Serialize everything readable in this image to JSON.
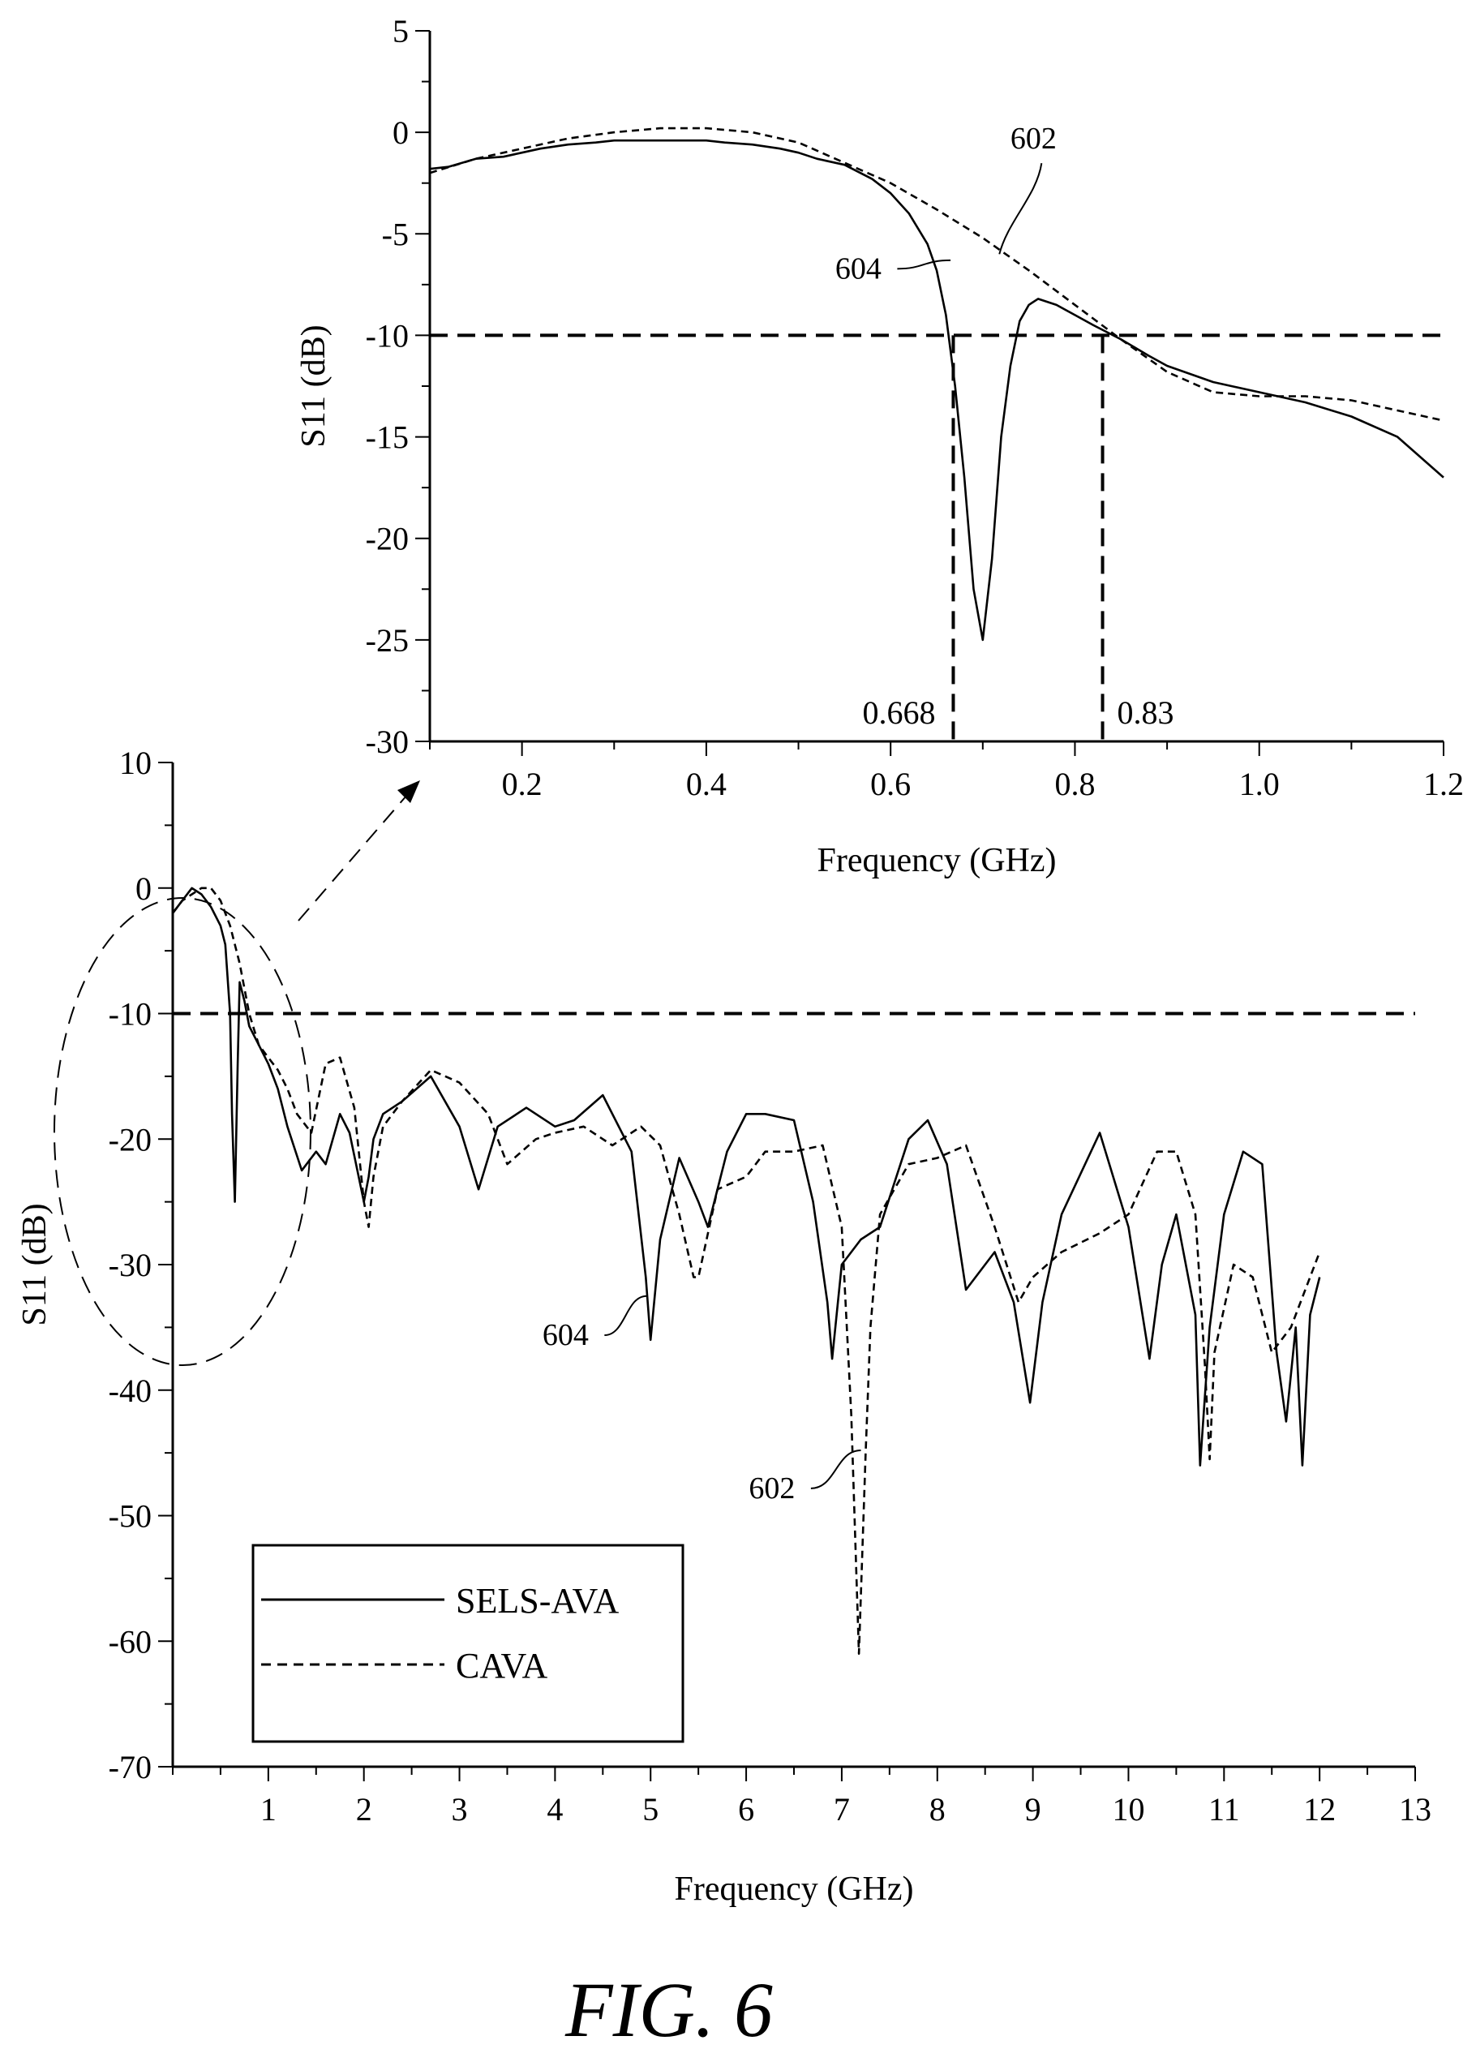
{
  "figure": {
    "caption": "FIG. 6"
  },
  "chart_data": [
    {
      "type": "line",
      "id": "inset",
      "xlabel": "Frequency (GHz)",
      "ylabel": "S11 (dB)",
      "xlim": [
        0.1,
        1.2
      ],
      "ylim": [
        -30,
        5
      ],
      "xticks": [
        0.2,
        0.4,
        0.6,
        0.8,
        1.0,
        1.2
      ],
      "xtick_labels": [
        "0.2",
        "0.4",
        "0.6",
        "0.8",
        "1.0",
        "1.2"
      ],
      "yticks": [
        5,
        0,
        -5,
        -10,
        -15,
        -20,
        -25,
        -30
      ],
      "ytick_labels": [
        "5",
        "0",
        "-5",
        "-10",
        "-15",
        "-20",
        "-25",
        "-30"
      ],
      "reference_line_y": -10,
      "vertical_markers": [
        {
          "x": 0.668,
          "label": "0.668"
        },
        {
          "x": 0.83,
          "label": "0.83"
        }
      ],
      "series": [
        {
          "name": "SELS-AVA",
          "ref": "604",
          "style": "solid",
          "x": [
            0.1,
            0.12,
            0.15,
            0.18,
            0.2,
            0.22,
            0.25,
            0.28,
            0.3,
            0.32,
            0.35,
            0.38,
            0.4,
            0.42,
            0.45,
            0.48,
            0.5,
            0.52,
            0.55,
            0.58,
            0.6,
            0.62,
            0.64,
            0.65,
            0.66,
            0.67,
            0.68,
            0.69,
            0.7,
            0.71,
            0.72,
            0.73,
            0.74,
            0.75,
            0.76,
            0.78,
            0.8,
            0.82,
            0.85,
            0.88,
            0.9,
            0.95,
            1.0,
            1.05,
            1.1,
            1.15,
            1.2
          ],
          "y": [
            -1.8,
            -1.7,
            -1.3,
            -1.2,
            -1.0,
            -0.8,
            -0.6,
            -0.5,
            -0.4,
            -0.4,
            -0.4,
            -0.4,
            -0.4,
            -0.5,
            -0.6,
            -0.8,
            -1.0,
            -1.3,
            -1.6,
            -2.3,
            -3.0,
            -4.0,
            -5.5,
            -6.8,
            -9.0,
            -12.5,
            -17.0,
            -22.5,
            -25.0,
            -21.0,
            -15.0,
            -11.5,
            -9.3,
            -8.5,
            -8.2,
            -8.5,
            -9.0,
            -9.5,
            -10.2,
            -11.0,
            -11.5,
            -12.3,
            -12.8,
            -13.3,
            -14.0,
            -15.0,
            -17.0
          ]
        },
        {
          "name": "CAVA",
          "ref": "602",
          "style": "dashed",
          "x": [
            0.1,
            0.15,
            0.2,
            0.25,
            0.3,
            0.35,
            0.4,
            0.45,
            0.5,
            0.55,
            0.6,
            0.65,
            0.7,
            0.75,
            0.8,
            0.85,
            0.9,
            0.95,
            1.0,
            1.05,
            1.1,
            1.15,
            1.2
          ],
          "y": [
            -2.0,
            -1.3,
            -0.8,
            -0.3,
            0.0,
            0.2,
            0.2,
            0.0,
            -0.5,
            -1.5,
            -2.5,
            -3.8,
            -5.2,
            -6.8,
            -8.5,
            -10.2,
            -11.8,
            -12.8,
            -13.0,
            -13.0,
            -13.2,
            -13.7,
            -14.2
          ]
        }
      ],
      "annotations": [
        {
          "text": "604",
          "target": "SELS-AVA"
        },
        {
          "text": "602",
          "target": "CAVA"
        }
      ]
    },
    {
      "type": "line",
      "id": "main",
      "xlabel": "Frequency (GHz)",
      "ylabel": "S11 (dB)",
      "xlim": [
        0,
        13
      ],
      "ylim": [
        -70,
        10
      ],
      "xticks": [
        1,
        2,
        3,
        4,
        5,
        6,
        7,
        8,
        9,
        10,
        11,
        12,
        13
      ],
      "xtick_labels": [
        "1",
        "2",
        "3",
        "4",
        "5",
        "6",
        "7",
        "8",
        "9",
        "10",
        "11",
        "12",
        "13"
      ],
      "yticks": [
        10,
        0,
        -10,
        -20,
        -30,
        -40,
        -50,
        -60,
        -70
      ],
      "ytick_labels": [
        "10",
        "0",
        "-10",
        "-20",
        "-30",
        "-40",
        "-50",
        "-60",
        "-70"
      ],
      "reference_line_y": -10,
      "legend": {
        "placement": "bottom-left",
        "entries": [
          "SELS-AVA",
          "CAVA"
        ]
      },
      "series": [
        {
          "name": "SELS-AVA",
          "ref": "604",
          "style": "solid",
          "x": [
            0.0,
            0.1,
            0.2,
            0.3,
            0.4,
            0.5,
            0.55,
            0.6,
            0.62,
            0.65,
            0.68,
            0.7,
            0.75,
            0.8,
            0.9,
            1.0,
            1.1,
            1.2,
            1.35,
            1.5,
            1.6,
            1.75,
            1.85,
            2.0,
            2.05,
            2.1,
            2.2,
            2.4,
            2.7,
            3.0,
            3.2,
            3.4,
            3.7,
            4.0,
            4.2,
            4.5,
            4.8,
            4.95,
            5.0,
            5.1,
            5.3,
            5.5,
            5.6,
            5.8,
            6.0,
            6.2,
            6.5,
            6.7,
            6.85,
            6.9,
            7.0,
            7.2,
            7.4,
            7.7,
            7.9,
            8.1,
            8.3,
            8.4,
            8.6,
            8.8,
            8.97,
            9.1,
            9.3,
            9.7,
            10.0,
            10.22,
            10.35,
            10.5,
            10.7,
            10.75,
            10.85,
            11.0,
            11.2,
            11.4,
            11.55,
            11.65,
            11.75,
            11.82,
            11.9,
            12.0
          ],
          "y": [
            -2.0,
            -1.0,
            0.0,
            -0.5,
            -1.5,
            -3.0,
            -4.5,
            -10.0,
            -18.0,
            -25.0,
            -14.0,
            -7.5,
            -9.0,
            -11.0,
            -12.5,
            -14.0,
            -16.0,
            -19.0,
            -22.5,
            -21.0,
            -22.0,
            -18.0,
            -19.5,
            -25.0,
            -23.0,
            -20.0,
            -18.0,
            -17.0,
            -15.0,
            -19.0,
            -24.0,
            -19.0,
            -17.5,
            -19.0,
            -18.5,
            -16.5,
            -21.0,
            -31.0,
            -36.0,
            -28.0,
            -21.5,
            -25.0,
            -27.0,
            -21.0,
            -18.0,
            -18.0,
            -18.5,
            -25.0,
            -33.0,
            -37.5,
            -30.0,
            -28.0,
            -27.0,
            -20.0,
            -18.5,
            -22.0,
            -32.0,
            -31.0,
            -29.0,
            -33.0,
            -41.0,
            -33.0,
            -26.0,
            -19.5,
            -27.0,
            -37.5,
            -30.0,
            -26.0,
            -34.0,
            -46.0,
            -35.0,
            -26.0,
            -21.0,
            -22.0,
            -37.0,
            -42.5,
            -35.0,
            -46.0,
            -34.0,
            -31.0
          ]
        },
        {
          "name": "CAVA",
          "ref": "602",
          "style": "dashed",
          "x": [
            0.0,
            0.1,
            0.2,
            0.3,
            0.4,
            0.5,
            0.6,
            0.7,
            0.8,
            0.9,
            1.0,
            1.1,
            1.2,
            1.3,
            1.45,
            1.6,
            1.75,
            1.9,
            2.0,
            2.05,
            2.1,
            2.2,
            2.4,
            2.7,
            3.0,
            3.3,
            3.5,
            3.8,
            4.0,
            4.3,
            4.6,
            4.9,
            5.1,
            5.3,
            5.45,
            5.5,
            5.7,
            6.0,
            6.2,
            6.5,
            6.8,
            7.0,
            7.1,
            7.18,
            7.25,
            7.3,
            7.4,
            7.7,
            8.0,
            8.3,
            8.6,
            8.85,
            9.0,
            9.3,
            9.7,
            10.0,
            10.3,
            10.5,
            10.7,
            10.8,
            10.85,
            10.9,
            11.1,
            11.3,
            11.5,
            11.7,
            11.9,
            12.0
          ],
          "y": [
            -2.0,
            -1.0,
            -0.5,
            0.0,
            0.0,
            -1.0,
            -3.0,
            -6.0,
            -10.0,
            -12.5,
            -13.5,
            -14.5,
            -16.0,
            -18.0,
            -19.5,
            -14.0,
            -13.5,
            -17.5,
            -25.0,
            -27.0,
            -23.0,
            -19.0,
            -17.0,
            -14.5,
            -15.5,
            -18.0,
            -22.0,
            -20.0,
            -19.5,
            -19.0,
            -20.5,
            -19.0,
            -20.5,
            -26.0,
            -31.0,
            -31.0,
            -24.0,
            -23.0,
            -21.0,
            -21.0,
            -20.5,
            -27.0,
            -42.0,
            -61.0,
            -45.0,
            -35.0,
            -26.0,
            -22.0,
            -21.5,
            -20.5,
            -27.0,
            -33.0,
            -31.0,
            -29.0,
            -27.5,
            -26.0,
            -21.0,
            -21.0,
            -26.0,
            -38.0,
            -45.5,
            -37.0,
            -30.0,
            -31.0,
            -37.0,
            -35.0,
            -31.0,
            -29.0
          ]
        }
      ],
      "annotations": [
        {
          "text": "604",
          "target": "SELS-AVA"
        },
        {
          "text": "602",
          "target": "CAVA"
        }
      ]
    }
  ]
}
